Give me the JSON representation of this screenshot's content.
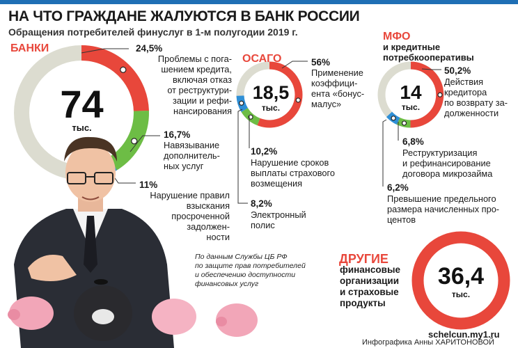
{
  "header": {
    "title": "НА ЧТО ГРАЖДАНЕ ЖАЛУЮТСЯ В БАНК РОССИИ",
    "subtitle": "Обращения потребителей финуслуг в 1-м полугодии 2019 г."
  },
  "banks": {
    "label": "БАНКИ",
    "total": "74",
    "unit": "тыс.",
    "items": [
      {
        "pct": "24,5%",
        "text": "Проблемы с пога-\nшением кредита,\nвключая отказ\nот реструктури-\nзации и рефи-\nнансирования"
      },
      {
        "pct": "16,7%",
        "text": "Навязывание\nдополнитель-\nных услуг"
      },
      {
        "pct": "11%",
        "text": "Нарушение правил\nвзыскания\nпросроченной\nзадолжен-\nности"
      }
    ]
  },
  "osago": {
    "label": "ОСАГО",
    "total": "18,5",
    "unit": "тыс.",
    "items": [
      {
        "pct": "56%",
        "text": "Применение\nкоэффици-\nента «бонус-\nмалус»"
      },
      {
        "pct": "10,2%",
        "text": "Нарушение сроков\nвыплаты страхового\nвозмещения"
      },
      {
        "pct": "8,2%",
        "text": "Электронный\nполис"
      }
    ]
  },
  "mfo": {
    "label": "МФО",
    "sublabel": "и кредитные\nпотребкооперативы",
    "total": "14",
    "unit": "тыс.",
    "items": [
      {
        "pct": "50,2%",
        "text": "Действия\nкредитора\nпо возврату за-\nдолженности"
      },
      {
        "pct": "6,8%",
        "text": "Реструктуризация\nи рефинансирование\nдоговора микрозайма"
      },
      {
        "pct": "6,2%",
        "text": "Превышение предельного\nразмера начисленных про-\nцентов"
      }
    ]
  },
  "others": {
    "label": "ДРУГИЕ",
    "text": "финансовые\nорганизации\nи страховые\nпродукты",
    "total": "36,4",
    "unit": "тыс."
  },
  "source_note": "По данным Службы ЦБ РФ\nпо защите прав потребителей\nи обеспечению доступности\nфинансовых услуг",
  "site": "schelcun.my1.ru",
  "credit": "Инфографика Анны ХАРИТОНОВОЙ",
  "colors": {
    "red": "#e8473b",
    "green": "#6dbd45",
    "blue": "#2e8fd6",
    "gray": "#dcdcd0",
    "label_red": "#e8473b"
  },
  "chart_data": [
    {
      "type": "pie",
      "title": "БАНКИ",
      "total": "74 тыс.",
      "categories": [
        "Проблемы с погашением кредита, включая отказ от реструктуризации и рефинансирования",
        "Навязывание дополнительных услуг",
        "Нарушение правил взыскания просроченной задолженности"
      ],
      "values": [
        24.5,
        16.7,
        11
      ]
    },
    {
      "type": "pie",
      "title": "ОСАГО",
      "total": "18,5 тыс.",
      "categories": [
        "Применение коэффициента «бонус-малус»",
        "Нарушение сроков выплаты страхового возмещения",
        "Электронный полис"
      ],
      "values": [
        56,
        10.2,
        8.2
      ]
    },
    {
      "type": "pie",
      "title": "МФО и кредитные потребкооперативы",
      "total": "14 тыс.",
      "categories": [
        "Действия кредитора по возврату задолженности",
        "Реструктуризация и рефинансирование договора микрозайма",
        "Превышение предельного размера начисленных процентов"
      ],
      "values": [
        50.2,
        6.8,
        6.2
      ]
    },
    {
      "type": "pie",
      "title": "ДРУГИЕ",
      "total": "36,4 тыс.",
      "categories": [],
      "values": []
    }
  ]
}
